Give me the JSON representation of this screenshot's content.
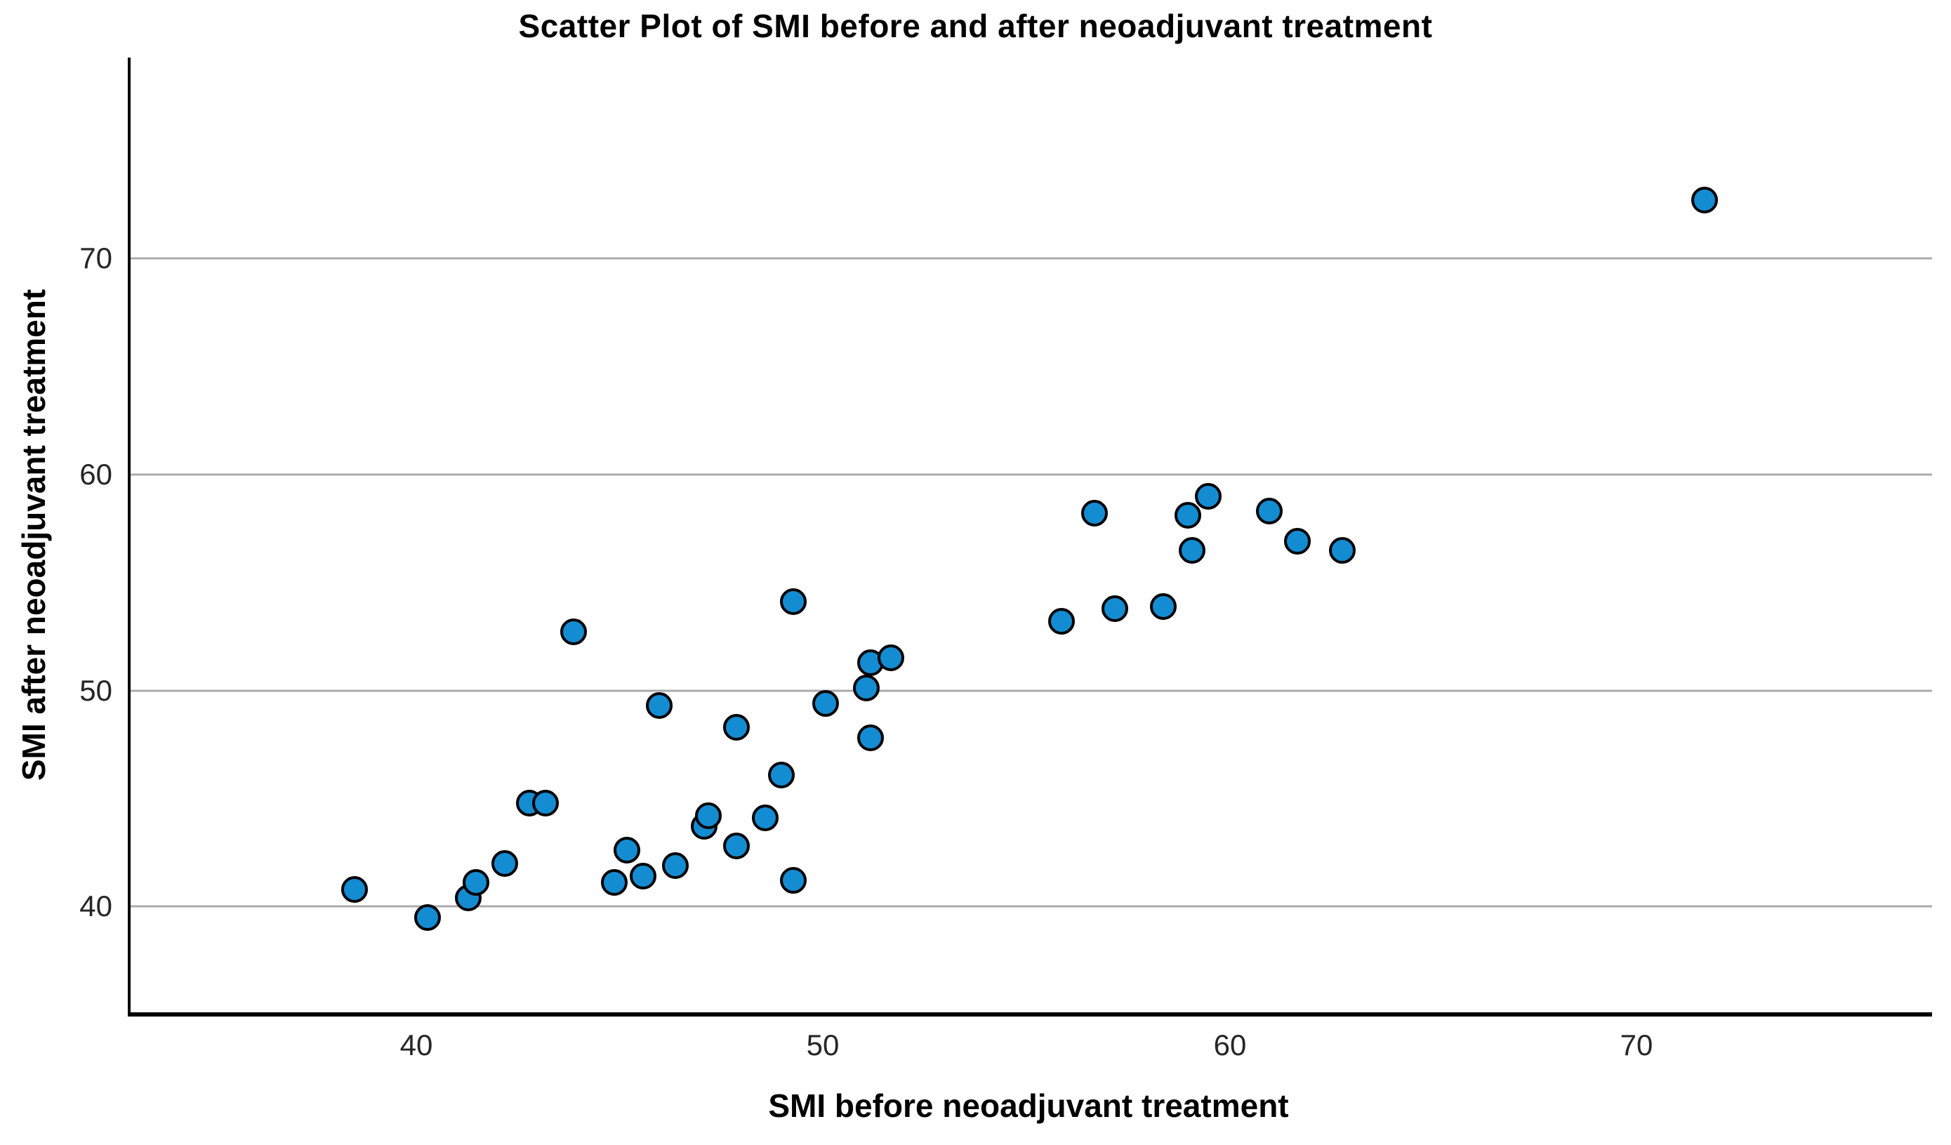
{
  "page": {
    "background": "#ffffff"
  },
  "chart_data": {
    "type": "scatter",
    "title": "Scatter Plot of SMI before and after neoadjuvant treatment",
    "xlabel": "SMI before neoadjuvant treatment",
    "ylabel": "SMI after neoadjuvant treatment",
    "xlim": [
      32.9,
      77.2
    ],
    "ylim": [
      35.1,
      79.3
    ],
    "x_ticks": [
      "40",
      "50",
      "60",
      "70"
    ],
    "x_tick_values": [
      40,
      50,
      60,
      70
    ],
    "y_ticks": [
      "40",
      "50",
      "60",
      "70"
    ],
    "y_tick_values": [
      40,
      50,
      60,
      70
    ],
    "grid": "horizontal-only",
    "gridline_color": "#ababab",
    "legend": "none",
    "marker": {
      "shape": "circle",
      "fill": "#148CD2",
      "stroke": "#000000"
    },
    "points": [
      [
        38.4,
        40.8
      ],
      [
        40.2,
        39.5
      ],
      [
        41.2,
        40.4
      ],
      [
        41.4,
        41.1
      ],
      [
        42.1,
        42.0
      ],
      [
        42.7,
        44.8
      ],
      [
        43.1,
        44.8
      ],
      [
        43.8,
        52.7
      ],
      [
        44.8,
        41.1
      ],
      [
        45.1,
        42.6
      ],
      [
        45.5,
        41.4
      ],
      [
        45.9,
        49.3
      ],
      [
        46.3,
        41.9
      ],
      [
        47.0,
        43.7
      ],
      [
        47.1,
        44.2
      ],
      [
        47.8,
        42.8
      ],
      [
        47.8,
        48.3
      ],
      [
        48.5,
        44.1
      ],
      [
        48.9,
        46.1
      ],
      [
        49.2,
        41.2
      ],
      [
        49.2,
        54.1
      ],
      [
        50.0,
        49.4
      ],
      [
        51.0,
        50.1
      ],
      [
        51.1,
        47.8
      ],
      [
        51.1,
        51.3
      ],
      [
        51.6,
        51.5
      ],
      [
        55.8,
        53.2
      ],
      [
        56.6,
        58.2
      ],
      [
        57.1,
        53.8
      ],
      [
        58.3,
        53.9
      ],
      [
        58.9,
        58.1
      ],
      [
        59.0,
        56.5
      ],
      [
        59.4,
        59.0
      ],
      [
        60.9,
        58.3
      ],
      [
        61.6,
        56.9
      ],
      [
        62.7,
        56.5
      ],
      [
        71.6,
        72.7
      ]
    ]
  }
}
